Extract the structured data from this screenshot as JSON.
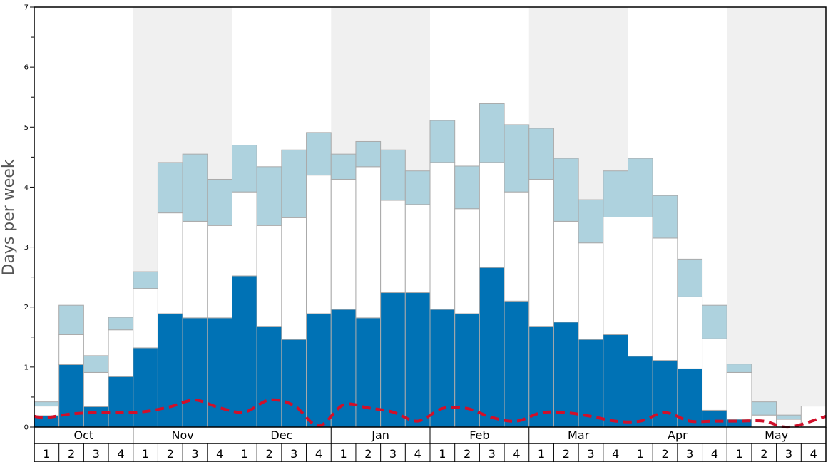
{
  "chart_data": {
    "type": "bar",
    "stacked": true,
    "ylabel": "Days per week",
    "ylim": [
      0,
      7
    ],
    "yticks": [
      "0",
      "1",
      "2",
      "3",
      "4",
      "5",
      "6",
      "7"
    ],
    "months": [
      "Oct",
      "Nov",
      "Dec",
      "Jan",
      "Feb",
      "Mar",
      "Apr",
      "May"
    ],
    "week_labels": [
      "1",
      "2",
      "3",
      "4"
    ],
    "shaded_months": [
      "Nov",
      "Jan",
      "Mar",
      "May"
    ],
    "colors": {
      "dark": "#0072b5",
      "middle": "#ffffff",
      "light": "#aed2de",
      "line": "#d0102a",
      "shade": "#f0f0f0",
      "bar_border": "#aaaaaa"
    },
    "series": [
      {
        "key": "dark",
        "values": [
          0.19,
          1.04,
          0.34,
          0.84,
          1.32,
          1.89,
          1.82,
          1.82,
          2.52,
          1.68,
          1.46,
          1.89,
          1.96,
          1.82,
          2.24,
          2.24,
          1.96,
          1.89,
          2.66,
          2.1,
          1.68,
          1.75,
          1.46,
          1.54,
          1.18,
          1.11,
          0.97,
          0.28,
          0.13,
          0.0,
          0.0,
          0.0
        ]
      },
      {
        "key": "middle",
        "values": [
          0.16,
          0.5,
          0.57,
          0.78,
          0.99,
          1.68,
          1.61,
          1.54,
          1.4,
          1.68,
          2.03,
          2.31,
          2.17,
          2.52,
          1.54,
          1.47,
          2.45,
          1.75,
          1.75,
          1.82,
          2.45,
          1.68,
          1.61,
          1.96,
          2.32,
          2.04,
          1.2,
          1.19,
          0.78,
          0.2,
          0.13,
          0.35
        ]
      },
      {
        "key": "light",
        "values": [
          0.07,
          0.49,
          0.28,
          0.21,
          0.28,
          0.84,
          1.12,
          0.77,
          0.78,
          0.98,
          1.13,
          0.71,
          0.42,
          0.42,
          0.84,
          0.56,
          0.7,
          0.71,
          0.98,
          1.12,
          0.85,
          1.05,
          0.72,
          0.77,
          0.98,
          0.71,
          0.63,
          0.56,
          0.14,
          0.22,
          0.07,
          0.0
        ]
      }
    ],
    "line_values": [
      0.18,
      0.16,
      0.22,
      0.24,
      0.24,
      0.26,
      0.34,
      0.45,
      0.32,
      0.25,
      0.45,
      0.36,
      0.02,
      0.37,
      0.32,
      0.25,
      0.1,
      0.31,
      0.31,
      0.16,
      0.1,
      0.24,
      0.24,
      0.18,
      0.1,
      0.1,
      0.24,
      0.1,
      0.1,
      0.1,
      0.1,
      0.0,
      0.18
    ]
  }
}
